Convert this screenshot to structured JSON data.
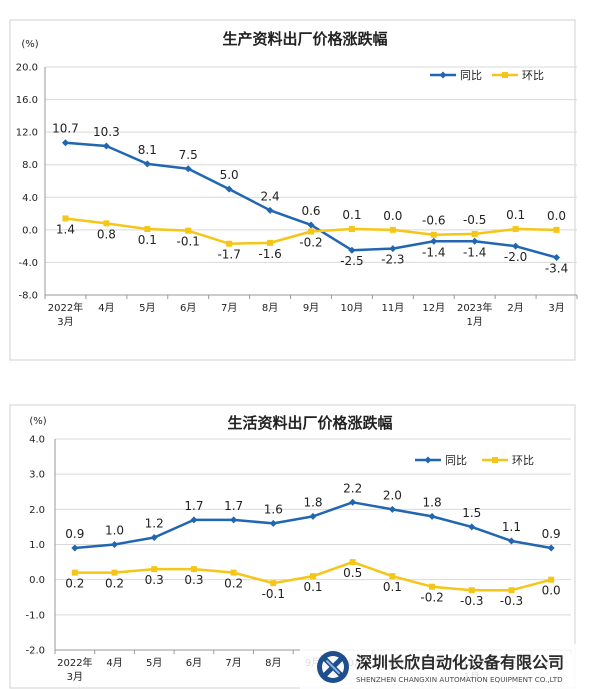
{
  "colors": {
    "yoy": "#2166b0",
    "mom": "#f5c518",
    "grid": "#d9d9d9",
    "axis": "#555555",
    "text": "#222222"
  },
  "categories": [
    [
      "2022年",
      "3月"
    ],
    [
      "4月"
    ],
    [
      "5月"
    ],
    [
      "6月"
    ],
    [
      "7月"
    ],
    [
      "8月"
    ],
    [
      "9月"
    ],
    [
      "10月"
    ],
    [
      "11月"
    ],
    [
      "12月"
    ],
    [
      "2023年",
      "1月"
    ],
    [
      "2月"
    ],
    [
      "3月"
    ]
  ],
  "chart_data": [
    {
      "type": "line",
      "title": "生产资料出厂价格涨跌幅",
      "ylabel": "(%)",
      "ylim": [
        -8,
        20
      ],
      "yticks": [
        "20.0",
        "16.0",
        "12.0",
        "8.0",
        "4.0",
        "0.0",
        "-4.0",
        "-8.0"
      ],
      "grid": true,
      "legend_position": "top-right",
      "series": [
        {
          "name": "同比",
          "key": "yoy",
          "values": [
            10.7,
            10.3,
            8.1,
            7.5,
            5.0,
            2.4,
            0.6,
            -2.5,
            -2.3,
            -1.4,
            -1.4,
            -2.0,
            -3.4
          ],
          "labels": [
            "10.7",
            "10.3",
            "8.1",
            "7.5",
            "5.0",
            "2.4",
            "0.6",
            "-2.5",
            "-2.3",
            "-1.4",
            "-1.4",
            "-2.0",
            "-3.4"
          ]
        },
        {
          "name": "环比",
          "key": "mom",
          "values": [
            1.4,
            0.8,
            0.1,
            -0.1,
            -1.7,
            -1.6,
            -0.2,
            0.1,
            0.0,
            -0.6,
            -0.5,
            0.1,
            0.0
          ],
          "labels": [
            "1.4",
            "0.8",
            "0.1",
            "-0.1",
            "-1.7",
            "-1.6",
            "-0.2",
            "0.1",
            "0.0",
            "-0.6",
            "-0.5",
            "0.1",
            "0.0"
          ]
        }
      ]
    },
    {
      "type": "line",
      "title": "生活资料出厂价格涨跌幅",
      "ylabel": "(%)",
      "ylim": [
        -2,
        4
      ],
      "yticks": [
        "4.0",
        "3.0",
        "2.0",
        "1.0",
        "0.0",
        "-1.0",
        "-2.0"
      ],
      "grid": true,
      "legend_position": "top-right",
      "series": [
        {
          "name": "同比",
          "key": "yoy",
          "values": [
            0.9,
            1.0,
            1.2,
            1.7,
            1.7,
            1.6,
            1.8,
            2.2,
            2.0,
            1.8,
            1.5,
            1.1,
            0.9
          ],
          "labels": [
            "0.9",
            "1.0",
            "1.2",
            "1.7",
            "1.7",
            "1.6",
            "1.8",
            "2.2",
            "2.0",
            "1.8",
            "1.5",
            "1.1",
            "0.9"
          ]
        },
        {
          "name": "环比",
          "key": "mom",
          "values": [
            0.2,
            0.2,
            0.3,
            0.3,
            0.2,
            -0.1,
            0.1,
            0.5,
            0.1,
            -0.2,
            -0.3,
            -0.3,
            0.0
          ],
          "labels": [
            "0.2",
            "0.2",
            "0.3",
            "0.3",
            "0.2",
            "-0.1",
            "0.1",
            "0.5",
            "0.1",
            "-0.2",
            "-0.3",
            "-0.3",
            "0.0"
          ]
        }
      ]
    }
  ],
  "watermark": {
    "name_cn": "深圳长欣自动化设备有限公司",
    "name_en": "SHENZHEN CHANGXIN AUTOMATION EQUIPMENT CO.,LTD"
  }
}
